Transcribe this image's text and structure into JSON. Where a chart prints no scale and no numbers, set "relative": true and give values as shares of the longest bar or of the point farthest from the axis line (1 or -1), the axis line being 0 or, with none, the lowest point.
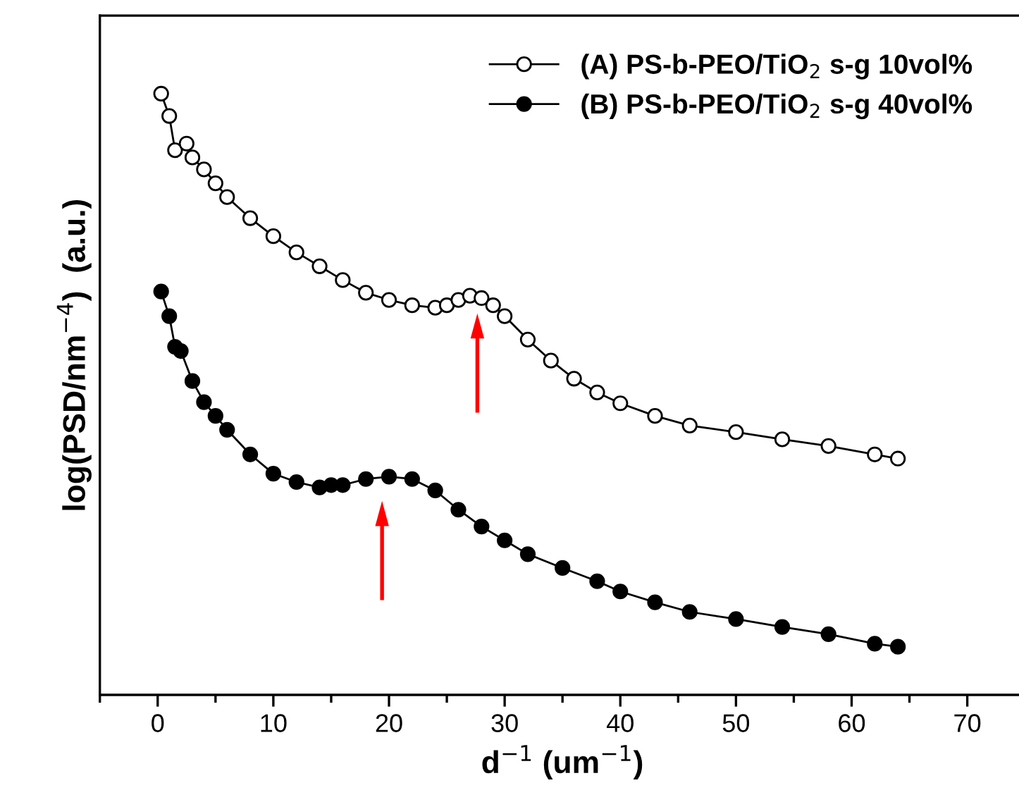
{
  "chart_data": {
    "type": "line",
    "relative": true,
    "xlabel": "d$^{−1}$ (um$^{−1}$)",
    "ylabel": "log(PSD/nm$^{−4}$)  (a.u.)",
    "xlim": [
      -5,
      75
    ],
    "xticks": [
      0,
      10,
      20,
      30,
      40,
      50,
      60,
      70
    ],
    "legend": "top right",
    "grid": false,
    "series": [
      {
        "name": "(A) PS-b-PEO/TiO$_{2}$ s-g 10vol%",
        "color": "#000000",
        "marker": "circle",
        "x": [
          0.3,
          1,
          1.5,
          2.5,
          3,
          4,
          5,
          6,
          8,
          10,
          12,
          14,
          16,
          18,
          20,
          22,
          24,
          25,
          26,
          27,
          28,
          29,
          30,
          32,
          34,
          36,
          38,
          40,
          43,
          46,
          50,
          54,
          58,
          62,
          64
        ],
        "values": [
          1.0,
          0.963,
          0.906,
          0.917,
          0.894,
          0.874,
          0.851,
          0.828,
          0.793,
          0.763,
          0.736,
          0.713,
          0.69,
          0.669,
          0.657,
          0.648,
          0.644,
          0.648,
          0.657,
          0.664,
          0.66,
          0.648,
          0.63,
          0.591,
          0.556,
          0.526,
          0.503,
          0.485,
          0.464,
          0.448,
          0.437,
          0.425,
          0.414,
          0.4,
          0.393
        ]
      },
      {
        "name": "(B) PS-b-PEO/TiO$_{2}$ s-g 40vol%",
        "color": "#000000",
        "marker": "circle",
        "x": [
          0.3,
          1,
          1.5,
          2,
          3,
          4,
          5,
          6,
          8,
          10,
          12,
          14,
          15,
          16,
          18,
          20,
          22,
          24,
          26,
          28,
          30,
          32,
          35,
          38,
          40,
          43,
          46,
          50,
          54,
          58,
          62,
          64
        ],
        "values": [
          0.671,
          0.63,
          0.579,
          0.572,
          0.522,
          0.487,
          0.464,
          0.441,
          0.4,
          0.368,
          0.354,
          0.345,
          0.349,
          0.349,
          0.359,
          0.363,
          0.359,
          0.34,
          0.308,
          0.28,
          0.257,
          0.234,
          0.211,
          0.189,
          0.172,
          0.154,
          0.138,
          0.126,
          0.113,
          0.101,
          0.085,
          0.08
        ]
      }
    ]
  }
}
